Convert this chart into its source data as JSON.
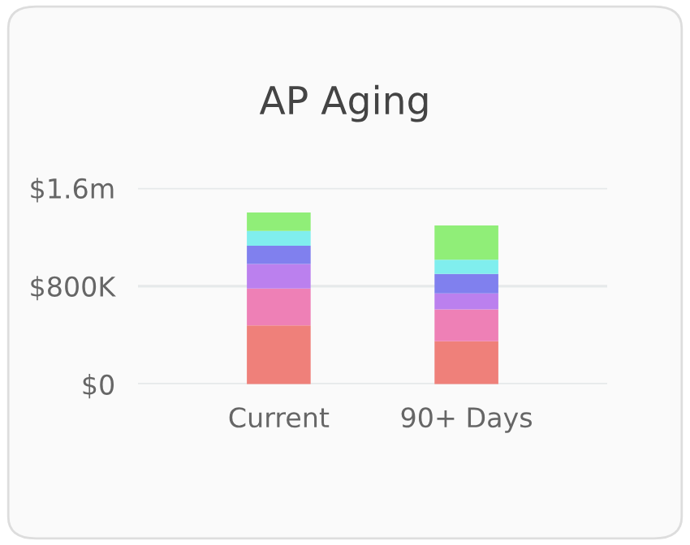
{
  "chart_data": {
    "type": "bar",
    "title": "AP Aging",
    "categories": [
      "Current",
      "90+ Days"
    ],
    "stacked": true,
    "series": [
      {
        "color": "#ef807a",
        "values": [
          480000,
          350000
        ]
      },
      {
        "color": "#ee80b6",
        "values": [
          300000,
          260000
        ]
      },
      {
        "color": "#bb80ee",
        "values": [
          200000,
          130000
        ]
      },
      {
        "color": "#8080ee",
        "values": [
          150000,
          160000
        ]
      },
      {
        "color": "#80eeee",
        "values": [
          120000,
          115000
        ]
      },
      {
        "color": "#90ee78",
        "values": [
          150000,
          280000
        ]
      }
    ],
    "ylim": [
      0,
      1600000
    ],
    "yticks": [
      {
        "value": 0,
        "label": "$0"
      },
      {
        "value": 800000,
        "label": "$800K"
      },
      {
        "value": 1600000,
        "label": "$1.6m"
      }
    ],
    "grid": "y",
    "legend": false
  }
}
